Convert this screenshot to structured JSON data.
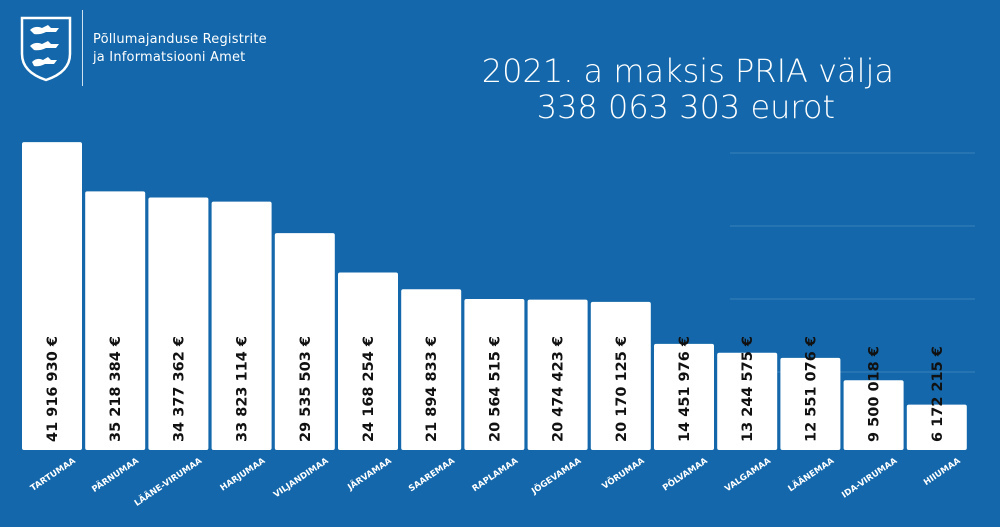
{
  "header": {
    "org_line1": "Põllumajanduse Registrite",
    "org_line2": "ja Informatsiooni Amet",
    "logo_icon": "estonian-coat-of-arms-icon"
  },
  "colors": {
    "background": "#1367aa",
    "bar": "#ffffff",
    "value_text": "#111111",
    "category_text": "#ffffff",
    "grid": "#3b80bb"
  },
  "chart_data": {
    "type": "bar",
    "title": "2021. a maksis PRIA välja",
    "subtitle": "338 063 303 eurot",
    "categories": [
      "TARTUMAA",
      "PÄRNUMAA",
      "LÄÄNE-VIRUMAA",
      "HARJUMAA",
      "VILJANDIMAA",
      "JÄRVAMAA",
      "SAAREMAA",
      "RAPLAMAA",
      "JÕGEVAMAA",
      "VÕRUMAA",
      "PÕLVAMAA",
      "VALGAMAA",
      "LÄÄNEMAA",
      "IDA-VIRUMAA",
      "HIIUMAA"
    ],
    "values": [
      41916930,
      35218384,
      34377362,
      33823114,
      29535503,
      24168254,
      21894833,
      20564515,
      20474423,
      20170125,
      14451976,
      13244575,
      12551076,
      9500018,
      6172215
    ],
    "value_labels": [
      "41 916 930 €",
      "35 218 384 €",
      "34 377 362 €",
      "33 823 114 €",
      "29 535 503 €",
      "24 168 254 €",
      "21 894 833 €",
      "20 564 515 €",
      "20 474 423 €",
      "20 170 125 €",
      "14 451 976 €",
      "13 244 575 €",
      "12 551 076 €",
      "9 500 018 €",
      "6 172 215 €"
    ],
    "ylim": [
      0,
      45000000
    ],
    "grid": true,
    "legend": "none"
  }
}
